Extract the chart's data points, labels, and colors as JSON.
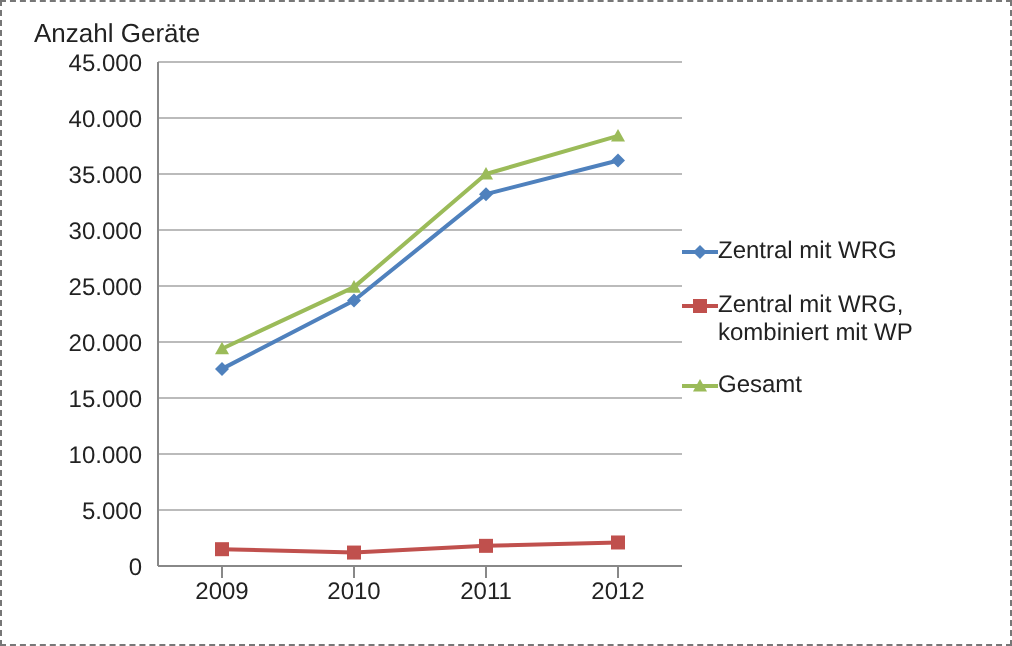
{
  "chart_data": {
    "type": "line",
    "ylabel": "Anzahl Geräte",
    "categories": [
      "2009",
      "2010",
      "2011",
      "2012"
    ],
    "series": [
      {
        "name": "Zentral mit WRG",
        "color": "#4f81bd",
        "marker": "diamond",
        "values": [
          17600,
          23700,
          33200,
          36200
        ]
      },
      {
        "name": "Zentral mit WRG, kombiniert mit WP",
        "color": "#c0504d",
        "marker": "square",
        "values": [
          1500,
          1200,
          1800,
          2100
        ]
      },
      {
        "name": "Gesamt",
        "color": "#9bbb59",
        "marker": "triangle",
        "values": [
          19400,
          24900,
          35000,
          38400
        ]
      }
    ],
    "ylim": [
      0,
      45000
    ],
    "yticks": [
      0,
      {
        "value": 5000,
        "label": "5.000"
      },
      {
        "value": 10000,
        "label": "10.000"
      },
      {
        "value": 15000,
        "label": "15.000"
      },
      {
        "value": 20000,
        "label": "20.000"
      },
      {
        "value": 25000,
        "label": "25.000"
      },
      {
        "value": 30000,
        "label": "30.000"
      },
      {
        "value": 35000,
        "label": "35.000"
      },
      {
        "value": 40000,
        "label": "40.000"
      },
      {
        "value": 45000,
        "label": "45.000"
      }
    ],
    "grid": "y",
    "legend": "right",
    "line_style": "solid"
  }
}
